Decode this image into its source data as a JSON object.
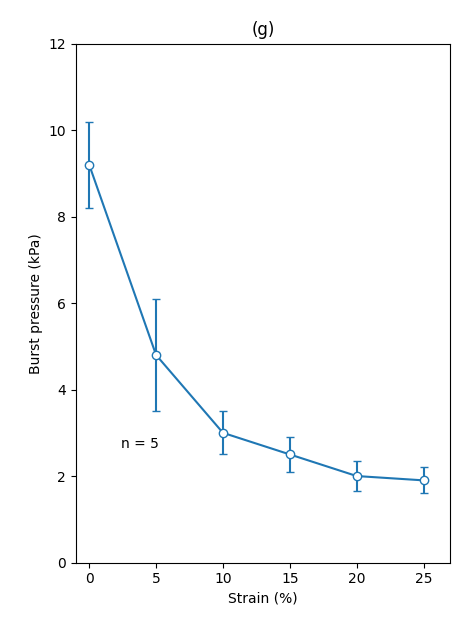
{
  "chart_data": {
    "type": "line",
    "title": "(g)",
    "x": [
      0,
      5,
      10,
      15,
      20,
      25
    ],
    "values": [
      9.2,
      4.8,
      3.0,
      2.5,
      2.0,
      1.9
    ],
    "yerr": [
      1.0,
      1.3,
      0.5,
      0.4,
      0.35,
      0.3
    ],
    "xlabel": "Strain (%)",
    "ylabel": "Burst pressure (kPa)",
    "annotation": "n = 5",
    "marker": "o",
    "line_style": "solid",
    "xlim": [
      -1,
      27
    ],
    "xticks": [
      0,
      5,
      10,
      15,
      20,
      25
    ],
    "ylim": [
      0,
      12
    ],
    "yticks": [
      0,
      2,
      4,
      6,
      8,
      10,
      12
    ],
    "grid": false
  }
}
